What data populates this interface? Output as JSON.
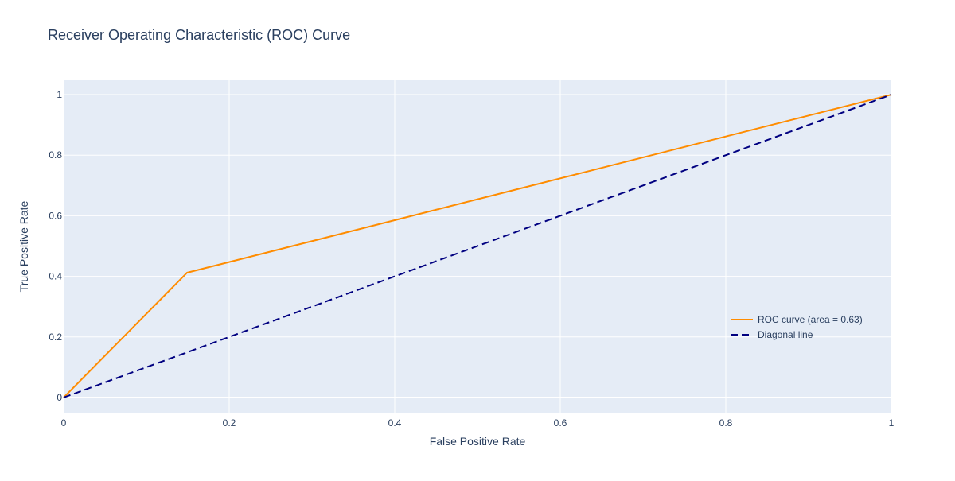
{
  "chart_data": {
    "type": "line",
    "title": "Receiver Operating Characteristic (ROC) Curve",
    "xlabel": "False Positive Rate",
    "ylabel": "True Positive Rate",
    "xlim": [
      0,
      1
    ],
    "ylim": [
      -0.05,
      1.05
    ],
    "x_ticks": [
      0,
      0.2,
      0.4,
      0.6,
      0.8,
      1
    ],
    "x_tick_labels": [
      "0",
      "0.2",
      "0.4",
      "0.6",
      "0.8",
      "1"
    ],
    "y_ticks": [
      0,
      0.2,
      0.4,
      0.6,
      0.8,
      1
    ],
    "y_tick_labels": [
      "0",
      "0.2",
      "0.4",
      "0.6",
      "0.8",
      "1"
    ],
    "grid": true,
    "legend_position": "right",
    "background_color": "#e5ecf6",
    "series": [
      {
        "name": "ROC curve (area = 0.63)",
        "color": "#ff8c00",
        "dash": "solid",
        "x": [
          0,
          0.149,
          1
        ],
        "y": [
          0,
          0.412,
          1
        ]
      },
      {
        "name": "Diagonal line",
        "color": "#000080",
        "dash": "dash",
        "x": [
          0,
          1
        ],
        "y": [
          0,
          1
        ]
      }
    ]
  }
}
